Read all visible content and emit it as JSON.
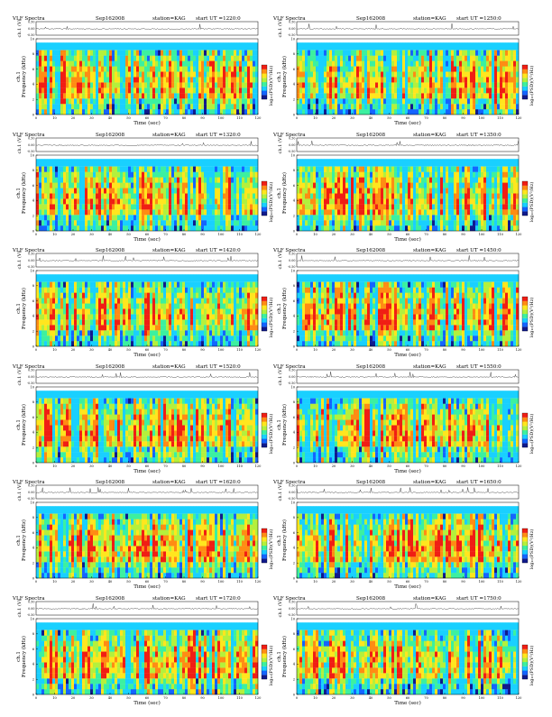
{
  "header": {
    "title": "VLF Spectra",
    "date": "Sep162008",
    "station": "station=KAG",
    "start_prefix": "start  UT ="
  },
  "axes": {
    "waveform_ylabel": "ch.1 (V)",
    "ylabel": "Frequency (kHz)",
    "ylabel_prefix": "ch.1",
    "xlabel": "Time (sec)",
    "colorbar_label": "log₁₀(PSD)(V²/Hz)",
    "waveform_ticks": [
      "0.50",
      "0.00",
      "-0.50"
    ],
    "frequency_ticks": [
      "0",
      "2",
      "4",
      "6",
      "8",
      "10"
    ],
    "time_ticks": [
      "0",
      "10",
      "20",
      "30",
      "40",
      "50",
      "60",
      "70",
      "80",
      "90",
      "100",
      "110",
      "120"
    ]
  },
  "colors": {
    "colormap": [
      "#101a8c",
      "#1464ff",
      "#19d0ff",
      "#3cf0a0",
      "#b4f03c",
      "#ffe61e",
      "#ff8c14",
      "#f01e14"
    ]
  },
  "chart_data": [
    {
      "type": "heatmap",
      "start_ut": "1220:0",
      "xlabel": "Time (sec)",
      "ylabel": "Frequency (kHz)",
      "xlim": [
        0,
        120
      ],
      "ylim": [
        0,
        10
      ],
      "waveform_ylim": [
        -0.5,
        0.5
      ]
    },
    {
      "type": "heatmap",
      "start_ut": "1250:0",
      "xlabel": "Time (sec)",
      "ylabel": "Frequency (kHz)",
      "xlim": [
        0,
        120
      ],
      "ylim": [
        0,
        10
      ],
      "waveform_ylim": [
        -0.5,
        0.5
      ]
    },
    {
      "type": "heatmap",
      "start_ut": "1320:0",
      "xlabel": "Time (sec)",
      "ylabel": "Frequency (kHz)",
      "xlim": [
        0,
        120
      ],
      "ylim": [
        0,
        10
      ],
      "waveform_ylim": [
        -0.5,
        0.5
      ]
    },
    {
      "type": "heatmap",
      "start_ut": "1350:0",
      "xlabel": "Time (sec)",
      "ylabel": "Frequency (kHz)",
      "xlim": [
        0,
        120
      ],
      "ylim": [
        0,
        10
      ],
      "waveform_ylim": [
        -0.5,
        0.5
      ]
    },
    {
      "type": "heatmap",
      "start_ut": "1420:0",
      "xlabel": "Time (sec)",
      "ylabel": "Frequency (kHz)",
      "xlim": [
        0,
        120
      ],
      "ylim": [
        0,
        10
      ],
      "waveform_ylim": [
        -0.5,
        0.5
      ]
    },
    {
      "type": "heatmap",
      "start_ut": "1450:0",
      "xlabel": "Time (sec)",
      "ylabel": "Frequency (kHz)",
      "xlim": [
        0,
        120
      ],
      "ylim": [
        0,
        10
      ],
      "waveform_ylim": [
        -0.5,
        0.5
      ]
    },
    {
      "type": "heatmap",
      "start_ut": "1520:0",
      "xlabel": "Time (sec)",
      "ylabel": "Frequency (kHz)",
      "xlim": [
        0,
        120
      ],
      "ylim": [
        0,
        10
      ],
      "waveform_ylim": [
        -0.5,
        0.5
      ]
    },
    {
      "type": "heatmap",
      "start_ut": "1550:0",
      "xlabel": "Time (sec)",
      "ylabel": "Frequency (kHz)",
      "xlim": [
        0,
        120
      ],
      "ylim": [
        0,
        10
      ],
      "waveform_ylim": [
        -0.5,
        0.5
      ]
    },
    {
      "type": "heatmap",
      "start_ut": "1620:0",
      "xlabel": "Time (sec)",
      "ylabel": "Frequency (kHz)",
      "xlim": [
        0,
        120
      ],
      "ylim": [
        0,
        10
      ],
      "waveform_ylim": [
        -0.5,
        0.5
      ]
    },
    {
      "type": "heatmap",
      "start_ut": "1650:0",
      "xlabel": "Time (sec)",
      "ylabel": "Frequency (kHz)",
      "xlim": [
        0,
        120
      ],
      "ylim": [
        0,
        10
      ],
      "waveform_ylim": [
        -0.5,
        0.5
      ]
    },
    {
      "type": "heatmap",
      "start_ut": "1720:0",
      "xlabel": "Time (sec)",
      "ylabel": "Frequency (kHz)",
      "xlim": [
        0,
        120
      ],
      "ylim": [
        0,
        10
      ],
      "waveform_ylim": [
        -0.5,
        0.5
      ]
    },
    {
      "type": "heatmap",
      "start_ut": "1750:0",
      "xlabel": "Time (sec)",
      "ylabel": "Frequency (kHz)",
      "xlim": [
        0,
        120
      ],
      "ylim": [
        0,
        10
      ],
      "waveform_ylim": [
        -0.5,
        0.5
      ]
    }
  ]
}
